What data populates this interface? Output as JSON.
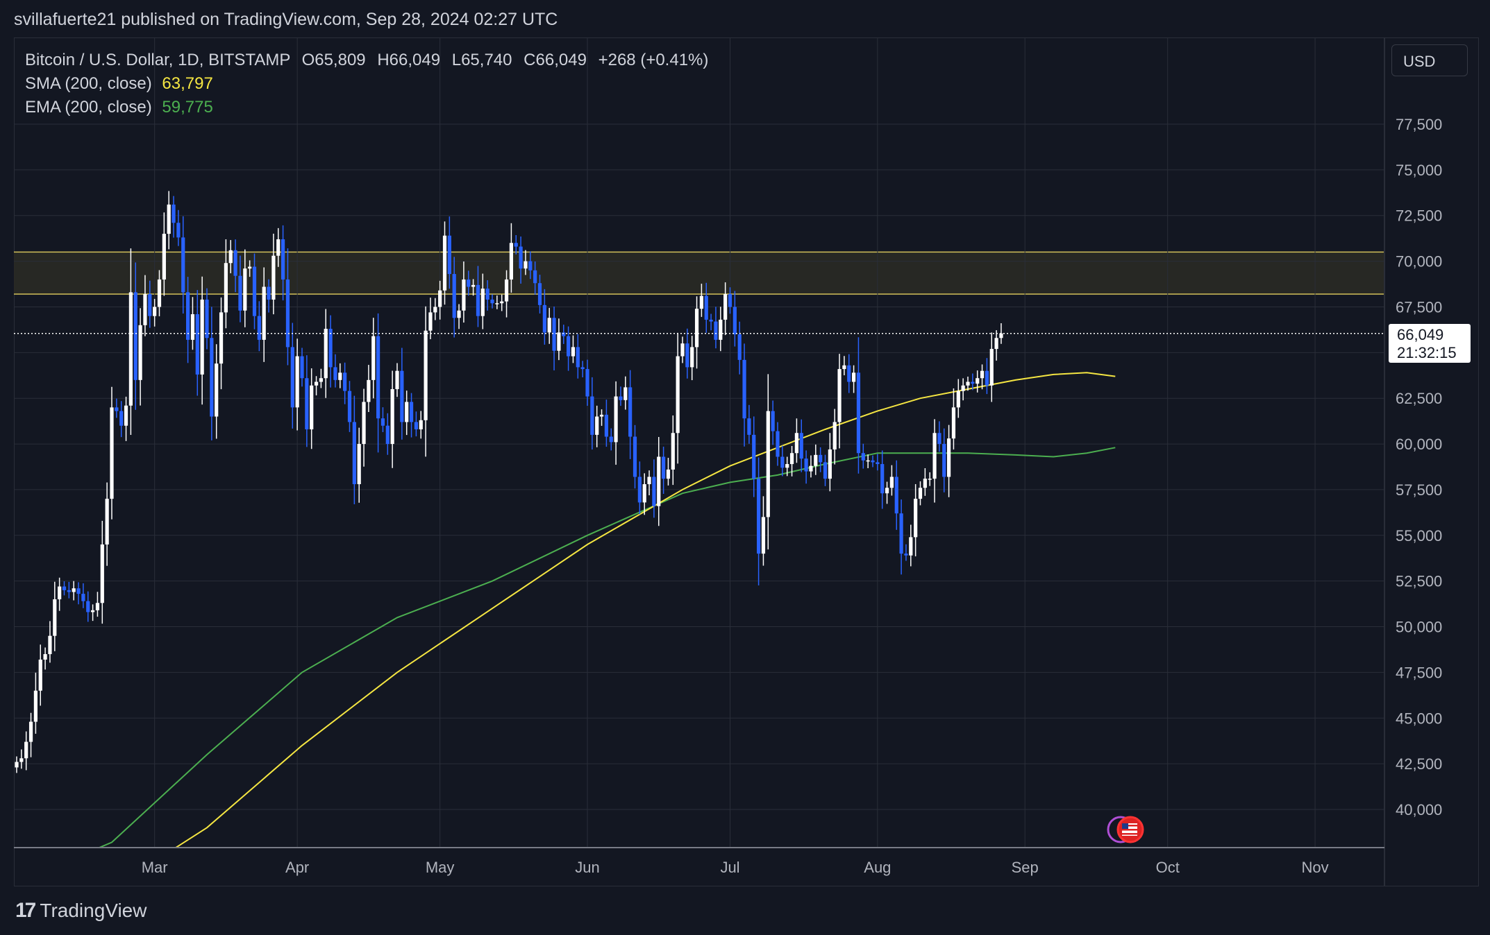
{
  "header": {
    "published": "svillafuerte21 published on TradingView.com, Sep 28, 2024 02:27 UTC"
  },
  "legend": {
    "symbol": "Bitcoin / U.S. Dollar, 1D, BITSTAMP",
    "open": "O65,809",
    "high": "H66,049",
    "low": "L65,740",
    "close": "C66,049",
    "change": "+268 (+0.41%)",
    "sma_label": "SMA (200, close)",
    "sma_value": "63,797",
    "ema_label": "EMA (200, close)",
    "ema_value": "59,775"
  },
  "currency": "USD",
  "price_tag": {
    "price": "66,049",
    "countdown": "21:32:15"
  },
  "branding": "TradingView",
  "colors": {
    "background": "#131722",
    "grid": "#2a2e39",
    "bull": "#ffffff",
    "bear": "#2962ff",
    "sma": "#f5e642",
    "ema": "#4caf50",
    "zone_border": "#d4c25a",
    "zone_fill": "#2a2a25"
  },
  "chart_data": {
    "type": "candlestick",
    "title": "Bitcoin / U.S. Dollar, 1D, BITSTAMP",
    "ylim": [
      38000,
      83000
    ],
    "y_ticks": [
      "40,000",
      "42,500",
      "45,000",
      "47,500",
      "50,000",
      "52,500",
      "55,000",
      "57,500",
      "60,000",
      "62,500",
      "65,000",
      "67,500",
      "70,000",
      "72,500",
      "75,000",
      "77,500"
    ],
    "x_ticks": [
      "Mar",
      "Apr",
      "May",
      "Jun",
      "Jul",
      "Aug",
      "Sep",
      "Oct",
      "Nov"
    ],
    "x_tick_days": [
      29,
      59,
      89,
      120,
      150,
      181,
      212,
      242,
      273
    ],
    "last_price": 66049,
    "resistance_zone": [
      68200,
      70500
    ],
    "closes": [
      42600,
      42800,
      43700,
      44800,
      46500,
      48200,
      48500,
      49500,
      51500,
      52200,
      52000,
      51900,
      52100,
      51800,
      51400,
      50800,
      50900,
      51300,
      54500,
      57000,
      62000,
      61800,
      61000,
      62100,
      68300,
      63500,
      66500,
      68200,
      67000,
      67500,
      69000,
      71500,
      73100,
      72100,
      71300,
      68300,
      65700,
      67100,
      63800,
      67900,
      65800,
      61500,
      64400,
      67200,
      69900,
      70600,
      69200,
      67300,
      69600,
      69700,
      67000,
      65700,
      68600,
      67900,
      70300,
      71200,
      69000,
      65300,
      62000,
      64800,
      63600,
      60800,
      63200,
      63400,
      63600,
      66300,
      64200,
      63500,
      63900,
      62900,
      61200,
      57800,
      60000,
      62300,
      63500,
      65900,
      61400,
      61000,
      60000,
      63000,
      64000,
      61200,
      62300,
      61200,
      60800,
      61300,
      66200,
      67200,
      67500,
      68400,
      71400,
      69300,
      66900,
      67300,
      69000,
      68600,
      68700,
      67000,
      68500,
      67900,
      67700,
      67700,
      67800,
      69000,
      71000,
      70800,
      69600,
      70000,
      69500,
      68800,
      67600,
      66100,
      66900,
      65100,
      66100,
      65900,
      64800,
      65300,
      64200,
      64100,
      62600,
      60500,
      61500,
      61600,
      60400,
      60100,
      62600,
      62400,
      63100,
      60400,
      58200,
      56800,
      57800,
      58200,
      56600,
      59300,
      58100,
      58600,
      60600,
      64800,
      65500,
      64200,
      65300,
      67400,
      68100,
      66800,
      66700,
      65700,
      66800,
      68200,
      67500,
      66000,
      64600,
      61400,
      60500,
      58100,
      54000,
      56000,
      61800,
      60700,
      59300,
      58700,
      58900,
      59500,
      60600,
      59200,
      58500,
      58800,
      59400,
      59000,
      58100,
      59700,
      61200,
      64100,
      64300,
      63400,
      63900,
      59500,
      59100,
      59100,
      59000,
      58900,
      57300,
      57600,
      58200,
      56200,
      54000,
      53900,
      54900,
      57000,
      57600,
      58100,
      58100,
      60600,
      60000,
      58200,
      60300,
      62000,
      62900,
      63200,
      63400,
      63300,
      63600,
      64000,
      63200,
      65200,
      65800,
      66049
    ],
    "sma_200": [
      [
        0,
        36000
      ],
      [
        28,
        37000
      ],
      [
        40,
        39000
      ],
      [
        60,
        43500
      ],
      [
        80,
        47500
      ],
      [
        100,
        51000
      ],
      [
        120,
        54500
      ],
      [
        140,
        57500
      ],
      [
        150,
        58800
      ],
      [
        160,
        59800
      ],
      [
        170,
        60800
      ],
      [
        181,
        61800
      ],
      [
        190,
        62500
      ],
      [
        200,
        63000
      ],
      [
        210,
        63500
      ],
      [
        218,
        63800
      ],
      [
        225,
        63900
      ],
      [
        231,
        63700
      ]
    ],
    "ema_200": [
      [
        0,
        36000
      ],
      [
        20,
        38200
      ],
      [
        40,
        43000
      ],
      [
        60,
        47500
      ],
      [
        80,
        50500
      ],
      [
        100,
        52500
      ],
      [
        120,
        55000
      ],
      [
        140,
        57300
      ],
      [
        150,
        57900
      ],
      [
        160,
        58300
      ],
      [
        170,
        58900
      ],
      [
        181,
        59500
      ],
      [
        190,
        59500
      ],
      [
        200,
        59500
      ],
      [
        210,
        59400
      ],
      [
        218,
        59300
      ],
      [
        225,
        59500
      ],
      [
        231,
        59800
      ]
    ]
  }
}
